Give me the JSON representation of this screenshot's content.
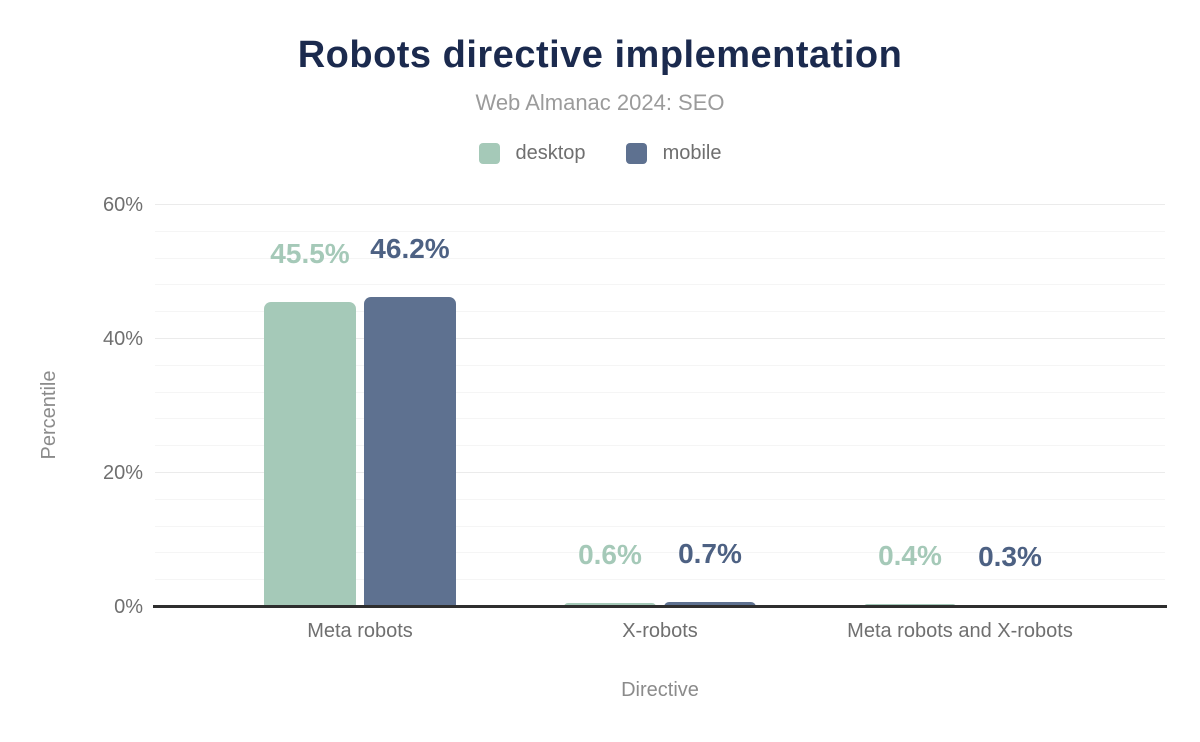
{
  "title": "Robots directive implementation",
  "subtitle": "Web Almanac 2024: SEO",
  "colors": {
    "title": "#1b2a4e",
    "desktop": "#a5c9b8",
    "mobile": "#5e7190",
    "desktop_value_label": "#a5c9b8",
    "mobile_value_label": "#4d6183",
    "axis_line": "#2e2e2e",
    "grid_minor": "#f5f5f5",
    "grid_major": "#ebebeb",
    "tick_text": "#6f6f6f",
    "axis_title_text": "#8b8b8b"
  },
  "legend": {
    "items": [
      {
        "label": "desktop",
        "color": "#a5c9b8"
      },
      {
        "label": "mobile",
        "color": "#5e7190"
      }
    ],
    "position": "top"
  },
  "chart_data": {
    "type": "bar",
    "title": "Robots directive implementation",
    "subtitle": "Web Almanac 2024: SEO",
    "categories": [
      "Meta robots",
      "X-robots",
      "Meta robots and X-robots"
    ],
    "series": [
      {
        "name": "desktop",
        "color": "#a5c9b8",
        "label_color": "#a5c9b8",
        "values": [
          45.5,
          0.6,
          0.4
        ]
      },
      {
        "name": "mobile",
        "color": "#5e7190",
        "label_color": "#4d6183",
        "values": [
          46.2,
          0.7,
          0.3
        ]
      }
    ],
    "data_labels": [
      "45.5%",
      "46.2%",
      "0.6%",
      "0.7%",
      "0.4%",
      "0.3%"
    ],
    "value_suffix": "%",
    "xlabel": "Directive",
    "ylabel": "Percentile",
    "ylim": [
      0,
      60
    ],
    "yticks": [
      0,
      20,
      40,
      60
    ],
    "ytick_labels": [
      "0%",
      "20%",
      "40%",
      "60%"
    ],
    "minor_grid_step": 4,
    "grid": true,
    "legend_position": "top"
  }
}
